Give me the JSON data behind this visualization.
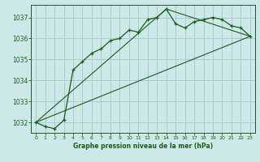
{
  "title": "Graphe pression niveau de la mer (hPa)",
  "bg_color": "#cce8e8",
  "grid_color": "#aacccc",
  "line_color": "#1a5c1a",
  "xlim": [
    -0.5,
    23.5
  ],
  "ylim": [
    1031.5,
    1037.6
  ],
  "yticks": [
    1032,
    1033,
    1034,
    1035,
    1036,
    1037
  ],
  "xticks": [
    0,
    1,
    2,
    3,
    4,
    5,
    6,
    7,
    8,
    9,
    10,
    11,
    12,
    13,
    14,
    15,
    16,
    17,
    18,
    19,
    20,
    21,
    22,
    23
  ],
  "hourly_x": [
    0,
    1,
    2,
    3,
    4,
    5,
    6,
    7,
    8,
    9,
    10,
    11,
    12,
    13,
    14,
    15,
    16,
    17,
    18,
    19,
    20,
    21,
    22,
    23
  ],
  "hourly_y": [
    1032.0,
    1031.8,
    1031.7,
    1032.1,
    1034.5,
    1034.9,
    1035.3,
    1035.5,
    1035.9,
    1036.0,
    1036.4,
    1036.3,
    1036.9,
    1037.0,
    1037.4,
    1036.7,
    1036.5,
    1036.8,
    1036.9,
    1037.0,
    1036.9,
    1036.6,
    1036.5,
    1036.1
  ],
  "trend1_x": [
    0,
    23
  ],
  "trend1_y": [
    1032.0,
    1036.1
  ],
  "trend2_x": [
    0,
    14,
    23
  ],
  "trend2_y": [
    1032.0,
    1037.4,
    1036.1
  ]
}
